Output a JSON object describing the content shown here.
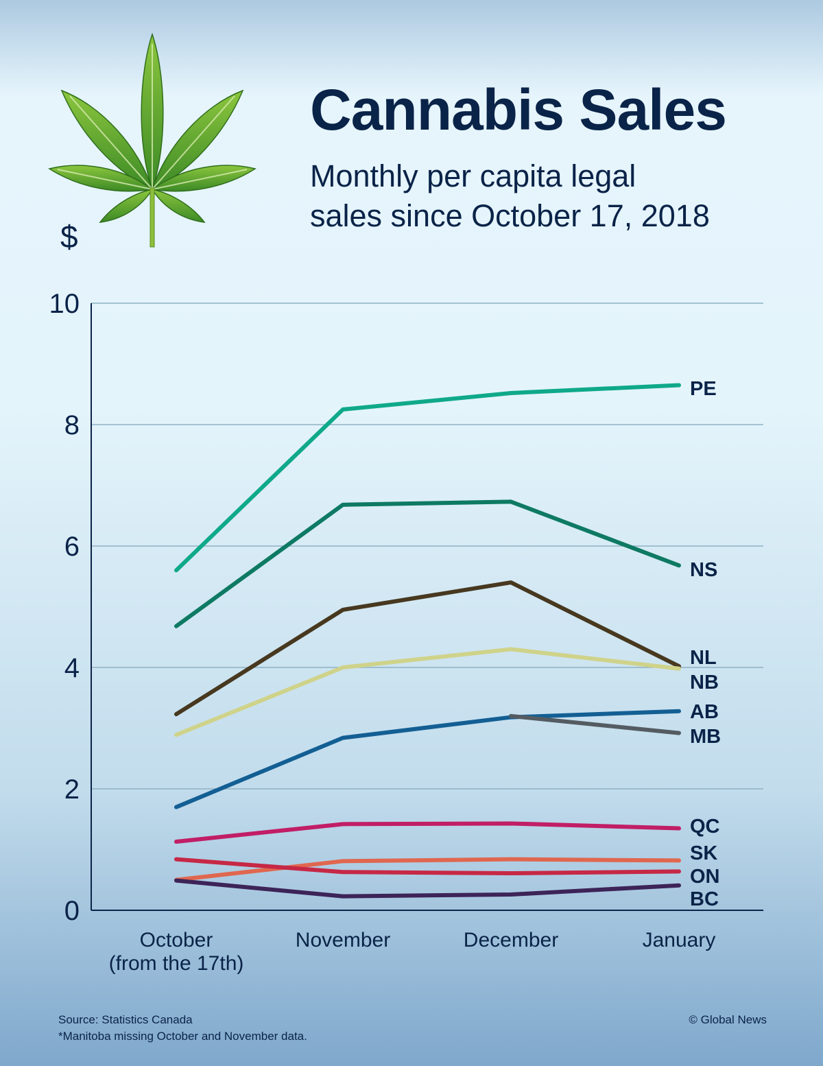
{
  "header": {
    "title": "Cannabis Sales",
    "subtitle_line1": "Monthly per capita legal",
    "subtitle_line2": "sales since October 17, 2018",
    "leaf_icon": "cannabis-leaf-icon"
  },
  "chart_data": {
    "type": "line",
    "title": "Cannabis Sales",
    "subtitle": "Monthly per capita legal sales since October 17, 2018",
    "ylabel": "$",
    "xlabel": "",
    "ylim": [
      0,
      10
    ],
    "yticks": [
      0,
      2,
      4,
      6,
      8,
      10
    ],
    "grid": true,
    "legend": "direct labels at right end of lines",
    "categories": [
      [
        "October",
        "(from the 17th)"
      ],
      [
        "November"
      ],
      [
        "December"
      ],
      [
        "January"
      ]
    ],
    "series": [
      {
        "name": "PE",
        "color": "#0fa98a",
        "values": [
          5.6,
          8.25,
          8.52,
          8.65
        ]
      },
      {
        "name": "NS",
        "color": "#0e7a63",
        "values": [
          4.68,
          6.68,
          6.73,
          5.68
        ]
      },
      {
        "name": "NL",
        "color": "#47381f",
        "values": [
          3.23,
          4.95,
          5.4,
          4.02
        ]
      },
      {
        "name": "NB",
        "color": "#cfd38a",
        "values": [
          2.89,
          4.0,
          4.3,
          3.98
        ]
      },
      {
        "name": "AB",
        "color": "#135f94",
        "values": [
          1.7,
          2.84,
          3.18,
          3.28
        ]
      },
      {
        "name": "MB",
        "color": "#545c62",
        "values": [
          null,
          null,
          3.2,
          2.92
        ]
      },
      {
        "name": "QC",
        "color": "#c11e66",
        "values": [
          1.13,
          1.42,
          1.43,
          1.35
        ]
      },
      {
        "name": "SK",
        "color": "#e0674f",
        "values": [
          0.5,
          0.81,
          0.84,
          0.82
        ]
      },
      {
        "name": "ON",
        "color": "#c62845",
        "values": [
          0.84,
          0.63,
          0.61,
          0.64
        ]
      },
      {
        "name": "BC",
        "color": "#3d2458",
        "values": [
          0.49,
          0.23,
          0.26,
          0.41
        ]
      }
    ]
  },
  "footer": {
    "source": "Source: Statistics Canada",
    "note": "*Manitoba missing October and November data.",
    "credit": "© Global News"
  }
}
